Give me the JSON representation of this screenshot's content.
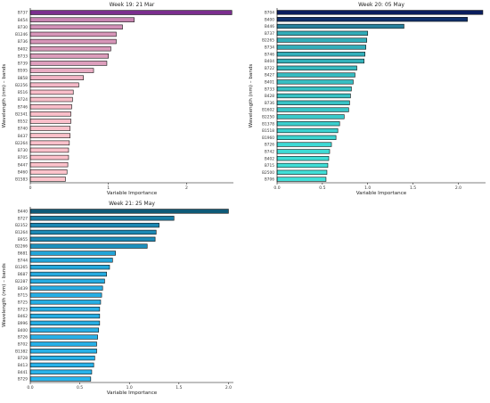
{
  "chart_data": [
    {
      "type": "bar",
      "orientation": "horizontal",
      "title": "Week 19: 21 Mar",
      "xlabel": "Variable Importance",
      "ylabel": "Wavelength (nm) – bands",
      "xlim": [
        0,
        2.6
      ],
      "xticks": [
        0,
        1,
        2
      ],
      "grid": false,
      "colors": [
        "#7b2e8e",
        "#ffc4cc"
      ],
      "categories": [
        "B737",
        "B454",
        "B730",
        "B1246",
        "B736",
        "B402",
        "B733",
        "B739",
        "B595",
        "B858",
        "B2256",
        "B516",
        "B724",
        "B746",
        "B2341",
        "B552",
        "B740",
        "B437",
        "B2264",
        "B730",
        "B705",
        "B447",
        "B460",
        "B1583"
      ],
      "values": [
        2.58,
        1.33,
        1.18,
        1.1,
        1.1,
        1.03,
        1.0,
        0.98,
        0.81,
        0.68,
        0.62,
        0.55,
        0.54,
        0.53,
        0.52,
        0.52,
        0.51,
        0.51,
        0.5,
        0.49,
        0.49,
        0.48,
        0.47,
        0.45
      ]
    },
    {
      "type": "bar",
      "orientation": "horizontal",
      "title": "Week 20: 05 May",
      "xlabel": "Variable Importance",
      "ylabel": "Wavelength (nm) – bands",
      "xlim": [
        0,
        2.3
      ],
      "xticks": [
        0.0,
        0.5,
        1.0,
        1.5,
        2.0
      ],
      "grid": false,
      "colors": [
        "#0b1d5e",
        "#40e0d8"
      ],
      "categories": [
        "B704",
        "B400",
        "B446",
        "B737",
        "B2265",
        "B734",
        "B746",
        "B404",
        "B722",
        "B427",
        "B401",
        "B733",
        "B428",
        "B736",
        "B1602",
        "B2250",
        "B1378",
        "B1518",
        "B1960",
        "B726",
        "B742",
        "B402",
        "B715",
        "B2500",
        "B706"
      ],
      "values": [
        2.27,
        2.1,
        1.4,
        1.0,
        0.99,
        0.98,
        0.97,
        0.96,
        0.88,
        0.86,
        0.84,
        0.82,
        0.81,
        0.8,
        0.79,
        0.74,
        0.69,
        0.67,
        0.65,
        0.6,
        0.58,
        0.57,
        0.56,
        0.55,
        0.54
      ]
    },
    {
      "type": "bar",
      "orientation": "horizontal",
      "title": "Week 21: 25 May",
      "xlabel": "Variable Importance",
      "ylabel": "Wavelength (nm) – bands",
      "xlim": [
        0,
        2.05
      ],
      "xticks": [
        0.0,
        0.5,
        1.0,
        1.5,
        2.0
      ],
      "grid": false,
      "colors": [
        "#0e5a78",
        "#28b4ec"
      ],
      "categories": [
        "B440",
        "B727",
        "B2352",
        "B1264",
        "B955",
        "B2266",
        "B681",
        "B744",
        "B1265",
        "B687",
        "B2287",
        "B439",
        "B715",
        "B725",
        "B723",
        "B462",
        "B996",
        "B400",
        "B726",
        "B702",
        "B1382",
        "B728",
        "B413",
        "B441",
        "B729"
      ],
      "values": [
        2.0,
        1.45,
        1.3,
        1.27,
        1.26,
        1.18,
        0.86,
        0.83,
        0.8,
        0.77,
        0.75,
        0.73,
        0.72,
        0.71,
        0.7,
        0.7,
        0.7,
        0.69,
        0.68,
        0.67,
        0.67,
        0.65,
        0.64,
        0.62,
        0.61
      ]
    }
  ]
}
